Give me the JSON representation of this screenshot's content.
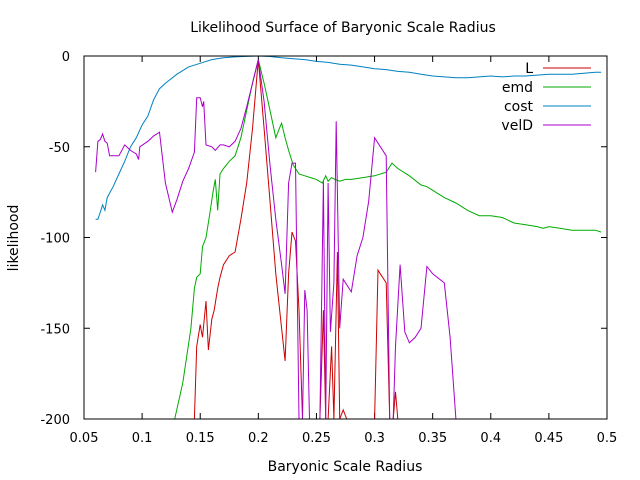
{
  "chart_data": {
    "type": "line",
    "title": "Likelihood Surface of Baryonic Scale Radius",
    "xlabel": "Baryonic Scale Radius",
    "ylabel": "likelihood",
    "xlim": [
      0.05,
      0.5
    ],
    "ylim": [
      -200,
      0
    ],
    "xticks": [
      "0.05",
      "0.1",
      "0.15",
      "0.2",
      "0.25",
      "0.3",
      "0.35",
      "0.4",
      "0.45",
      "0.5"
    ],
    "xtick_values": [
      0.05,
      0.1,
      0.15,
      0.2,
      0.25,
      0.3,
      0.35,
      0.4,
      0.45,
      0.5
    ],
    "yticks": [
      "-200",
      "-150",
      "-100",
      "-50",
      "0"
    ],
    "ytick_values": [
      -200,
      -150,
      -100,
      -50,
      0
    ],
    "grid": false,
    "legend_position": "top-right",
    "series": [
      {
        "name": "L",
        "color": "#cc0000",
        "points": [
          [
            0.145,
            -200
          ],
          [
            0.147,
            -160
          ],
          [
            0.15,
            -148
          ],
          [
            0.152,
            -155
          ],
          [
            0.155,
            -135
          ],
          [
            0.157,
            -162
          ],
          [
            0.16,
            -145
          ],
          [
            0.162,
            -140
          ],
          [
            0.165,
            -128
          ],
          [
            0.167,
            -122
          ],
          [
            0.17,
            -115
          ],
          [
            0.175,
            -110
          ],
          [
            0.18,
            -108
          ],
          [
            0.185,
            -90
          ],
          [
            0.19,
            -70
          ],
          [
            0.195,
            -40
          ],
          [
            0.2,
            -2
          ],
          [
            0.205,
            -40
          ],
          [
            0.21,
            -80
          ],
          [
            0.215,
            -120
          ],
          [
            0.22,
            -150
          ],
          [
            0.223,
            -168
          ],
          [
            0.226,
            -120
          ],
          [
            0.229,
            -97
          ],
          [
            0.232,
            -102
          ],
          [
            0.235,
            -140
          ],
          [
            0.238,
            -200
          ],
          [
            0.241,
            -200
          ],
          [
            0.244,
            -200
          ],
          [
            0.247,
            -200
          ],
          [
            0.25,
            -200
          ],
          [
            0.253,
            -200
          ],
          [
            0.256,
            -140
          ],
          [
            0.258,
            -200
          ],
          [
            0.26,
            -200
          ],
          [
            0.263,
            -160
          ],
          [
            0.265,
            -200
          ],
          [
            0.268,
            -108
          ],
          [
            0.27,
            -200
          ],
          [
            0.273,
            -195
          ],
          [
            0.276,
            -200
          ],
          [
            0.3,
            -200
          ],
          [
            0.303,
            -118
          ],
          [
            0.31,
            -125
          ],
          [
            0.313,
            -200
          ],
          [
            0.316,
            -200
          ],
          [
            0.318,
            -185
          ],
          [
            0.32,
            -200
          ],
          [
            0.35,
            -200
          ]
        ]
      },
      {
        "name": "emd",
        "color": "#00aa00",
        "points": [
          [
            0.128,
            -200
          ],
          [
            0.135,
            -180
          ],
          [
            0.142,
            -150
          ],
          [
            0.145,
            -128
          ],
          [
            0.147,
            -122
          ],
          [
            0.15,
            -120
          ],
          [
            0.152,
            -105
          ],
          [
            0.155,
            -100
          ],
          [
            0.158,
            -88
          ],
          [
            0.161,
            -75
          ],
          [
            0.163,
            -68
          ],
          [
            0.165,
            -85
          ],
          [
            0.167,
            -65
          ],
          [
            0.17,
            -62
          ],
          [
            0.175,
            -58
          ],
          [
            0.18,
            -55
          ],
          [
            0.185,
            -45
          ],
          [
            0.19,
            -30
          ],
          [
            0.195,
            -15
          ],
          [
            0.2,
            -2
          ],
          [
            0.205,
            -15
          ],
          [
            0.21,
            -30
          ],
          [
            0.215,
            -45
          ],
          [
            0.218,
            -40
          ],
          [
            0.22,
            -37
          ],
          [
            0.223,
            -45
          ],
          [
            0.226,
            -52
          ],
          [
            0.23,
            -60
          ],
          [
            0.235,
            -65
          ],
          [
            0.24,
            -66
          ],
          [
            0.245,
            -67
          ],
          [
            0.25,
            -68
          ],
          [
            0.255,
            -70
          ],
          [
            0.258,
            -66
          ],
          [
            0.26,
            -69
          ],
          [
            0.263,
            -67
          ],
          [
            0.266,
            -68
          ],
          [
            0.27,
            -69
          ],
          [
            0.275,
            -68
          ],
          [
            0.28,
            -68
          ],
          [
            0.29,
            -67
          ],
          [
            0.3,
            -66
          ],
          [
            0.31,
            -64
          ],
          [
            0.315,
            -59
          ],
          [
            0.32,
            -62
          ],
          [
            0.33,
            -66
          ],
          [
            0.34,
            -71
          ],
          [
            0.345,
            -72
          ],
          [
            0.35,
            -74
          ],
          [
            0.36,
            -78
          ],
          [
            0.37,
            -81
          ],
          [
            0.38,
            -85
          ],
          [
            0.39,
            -88
          ],
          [
            0.4,
            -88
          ],
          [
            0.41,
            -89
          ],
          [
            0.42,
            -92
          ],
          [
            0.43,
            -93
          ],
          [
            0.44,
            -94
          ],
          [
            0.445,
            -95
          ],
          [
            0.45,
            -94
          ],
          [
            0.46,
            -95
          ],
          [
            0.47,
            -96
          ],
          [
            0.48,
            -96
          ],
          [
            0.49,
            -96
          ],
          [
            0.495,
            -97
          ]
        ]
      },
      {
        "name": "cost",
        "color": "#0080c0",
        "points": [
          [
            0.06,
            -90
          ],
          [
            0.062,
            -90
          ],
          [
            0.064,
            -86
          ],
          [
            0.066,
            -82
          ],
          [
            0.068,
            -85
          ],
          [
            0.07,
            -78
          ],
          [
            0.075,
            -72
          ],
          [
            0.08,
            -65
          ],
          [
            0.085,
            -58
          ],
          [
            0.09,
            -50
          ],
          [
            0.095,
            -45
          ],
          [
            0.1,
            -38
          ],
          [
            0.105,
            -33
          ],
          [
            0.11,
            -24
          ],
          [
            0.115,
            -18
          ],
          [
            0.12,
            -15
          ],
          [
            0.13,
            -10
          ],
          [
            0.14,
            -6
          ],
          [
            0.15,
            -4
          ],
          [
            0.16,
            -2
          ],
          [
            0.17,
            -1
          ],
          [
            0.18,
            -0.5
          ],
          [
            0.19,
            -0.2
          ],
          [
            0.2,
            0
          ],
          [
            0.21,
            -0.3
          ],
          [
            0.22,
            -1
          ],
          [
            0.23,
            -1.5
          ],
          [
            0.24,
            -2
          ],
          [
            0.25,
            -3
          ],
          [
            0.26,
            -3.5
          ],
          [
            0.27,
            -4.5
          ],
          [
            0.28,
            -5
          ],
          [
            0.29,
            -6
          ],
          [
            0.3,
            -7
          ],
          [
            0.31,
            -7.5
          ],
          [
            0.32,
            -8.5
          ],
          [
            0.33,
            -9
          ],
          [
            0.34,
            -10
          ],
          [
            0.35,
            -11
          ],
          [
            0.36,
            -11.5
          ],
          [
            0.37,
            -12
          ],
          [
            0.38,
            -12
          ],
          [
            0.39,
            -11.5
          ],
          [
            0.4,
            -11
          ],
          [
            0.41,
            -11.5
          ],
          [
            0.42,
            -11
          ],
          [
            0.43,
            -11
          ],
          [
            0.44,
            -10.5
          ],
          [
            0.45,
            -10
          ],
          [
            0.46,
            -10
          ],
          [
            0.47,
            -10
          ],
          [
            0.48,
            -9.5
          ],
          [
            0.49,
            -9
          ],
          [
            0.495,
            -9
          ]
        ]
      },
      {
        "name": "velD",
        "color": "#aa00cc",
        "points": [
          [
            0.06,
            -64
          ],
          [
            0.062,
            -47
          ],
          [
            0.064,
            -46
          ],
          [
            0.066,
            -43
          ],
          [
            0.068,
            -47
          ],
          [
            0.07,
            -48
          ],
          [
            0.072,
            -55
          ],
          [
            0.075,
            -55
          ],
          [
            0.08,
            -55
          ],
          [
            0.085,
            -49
          ],
          [
            0.09,
            -52
          ],
          [
            0.095,
            -54
          ],
          [
            0.097,
            -57
          ],
          [
            0.098,
            -50
          ],
          [
            0.105,
            -47
          ],
          [
            0.11,
            -44
          ],
          [
            0.115,
            -42
          ],
          [
            0.12,
            -70
          ],
          [
            0.126,
            -86
          ],
          [
            0.13,
            -79
          ],
          [
            0.135,
            -69
          ],
          [
            0.14,
            -62
          ],
          [
            0.145,
            -53
          ],
          [
            0.147,
            -23
          ],
          [
            0.15,
            -23
          ],
          [
            0.152,
            -28
          ],
          [
            0.153,
            -25
          ],
          [
            0.155,
            -49
          ],
          [
            0.16,
            -50
          ],
          [
            0.163,
            -52
          ],
          [
            0.167,
            -49
          ],
          [
            0.17,
            -49
          ],
          [
            0.175,
            -50
          ],
          [
            0.18,
            -47
          ],
          [
            0.185,
            -40
          ],
          [
            0.19,
            -28
          ],
          [
            0.195,
            -15
          ],
          [
            0.2,
            -2
          ],
          [
            0.205,
            -25
          ],
          [
            0.21,
            -60
          ],
          [
            0.215,
            -90
          ],
          [
            0.22,
            -115
          ],
          [
            0.223,
            -131
          ],
          [
            0.226,
            -70
          ],
          [
            0.229,
            -59
          ],
          [
            0.232,
            -59
          ],
          [
            0.235,
            -200
          ],
          [
            0.238,
            -200
          ],
          [
            0.24,
            -129
          ],
          [
            0.242,
            -140
          ],
          [
            0.244,
            -200
          ],
          [
            0.25,
            -200
          ],
          [
            0.253,
            -200
          ],
          [
            0.256,
            -69
          ],
          [
            0.258,
            -200
          ],
          [
            0.26,
            -70
          ],
          [
            0.262,
            -152
          ],
          [
            0.265,
            -125
          ],
          [
            0.267,
            -36
          ],
          [
            0.27,
            -150
          ],
          [
            0.273,
            -123
          ],
          [
            0.28,
            -130
          ],
          [
            0.285,
            -110
          ],
          [
            0.29,
            -100
          ],
          [
            0.295,
            -80
          ],
          [
            0.3,
            -45
          ],
          [
            0.305,
            -50
          ],
          [
            0.31,
            -55
          ],
          [
            0.313,
            -200
          ],
          [
            0.316,
            -200
          ],
          [
            0.318,
            -160
          ],
          [
            0.322,
            -115
          ],
          [
            0.326,
            -152
          ],
          [
            0.33,
            -158
          ],
          [
            0.335,
            -155
          ],
          [
            0.34,
            -150
          ],
          [
            0.345,
            -116
          ],
          [
            0.35,
            -120
          ],
          [
            0.36,
            -125
          ],
          [
            0.365,
            -155
          ],
          [
            0.37,
            -200
          ]
        ]
      }
    ]
  }
}
